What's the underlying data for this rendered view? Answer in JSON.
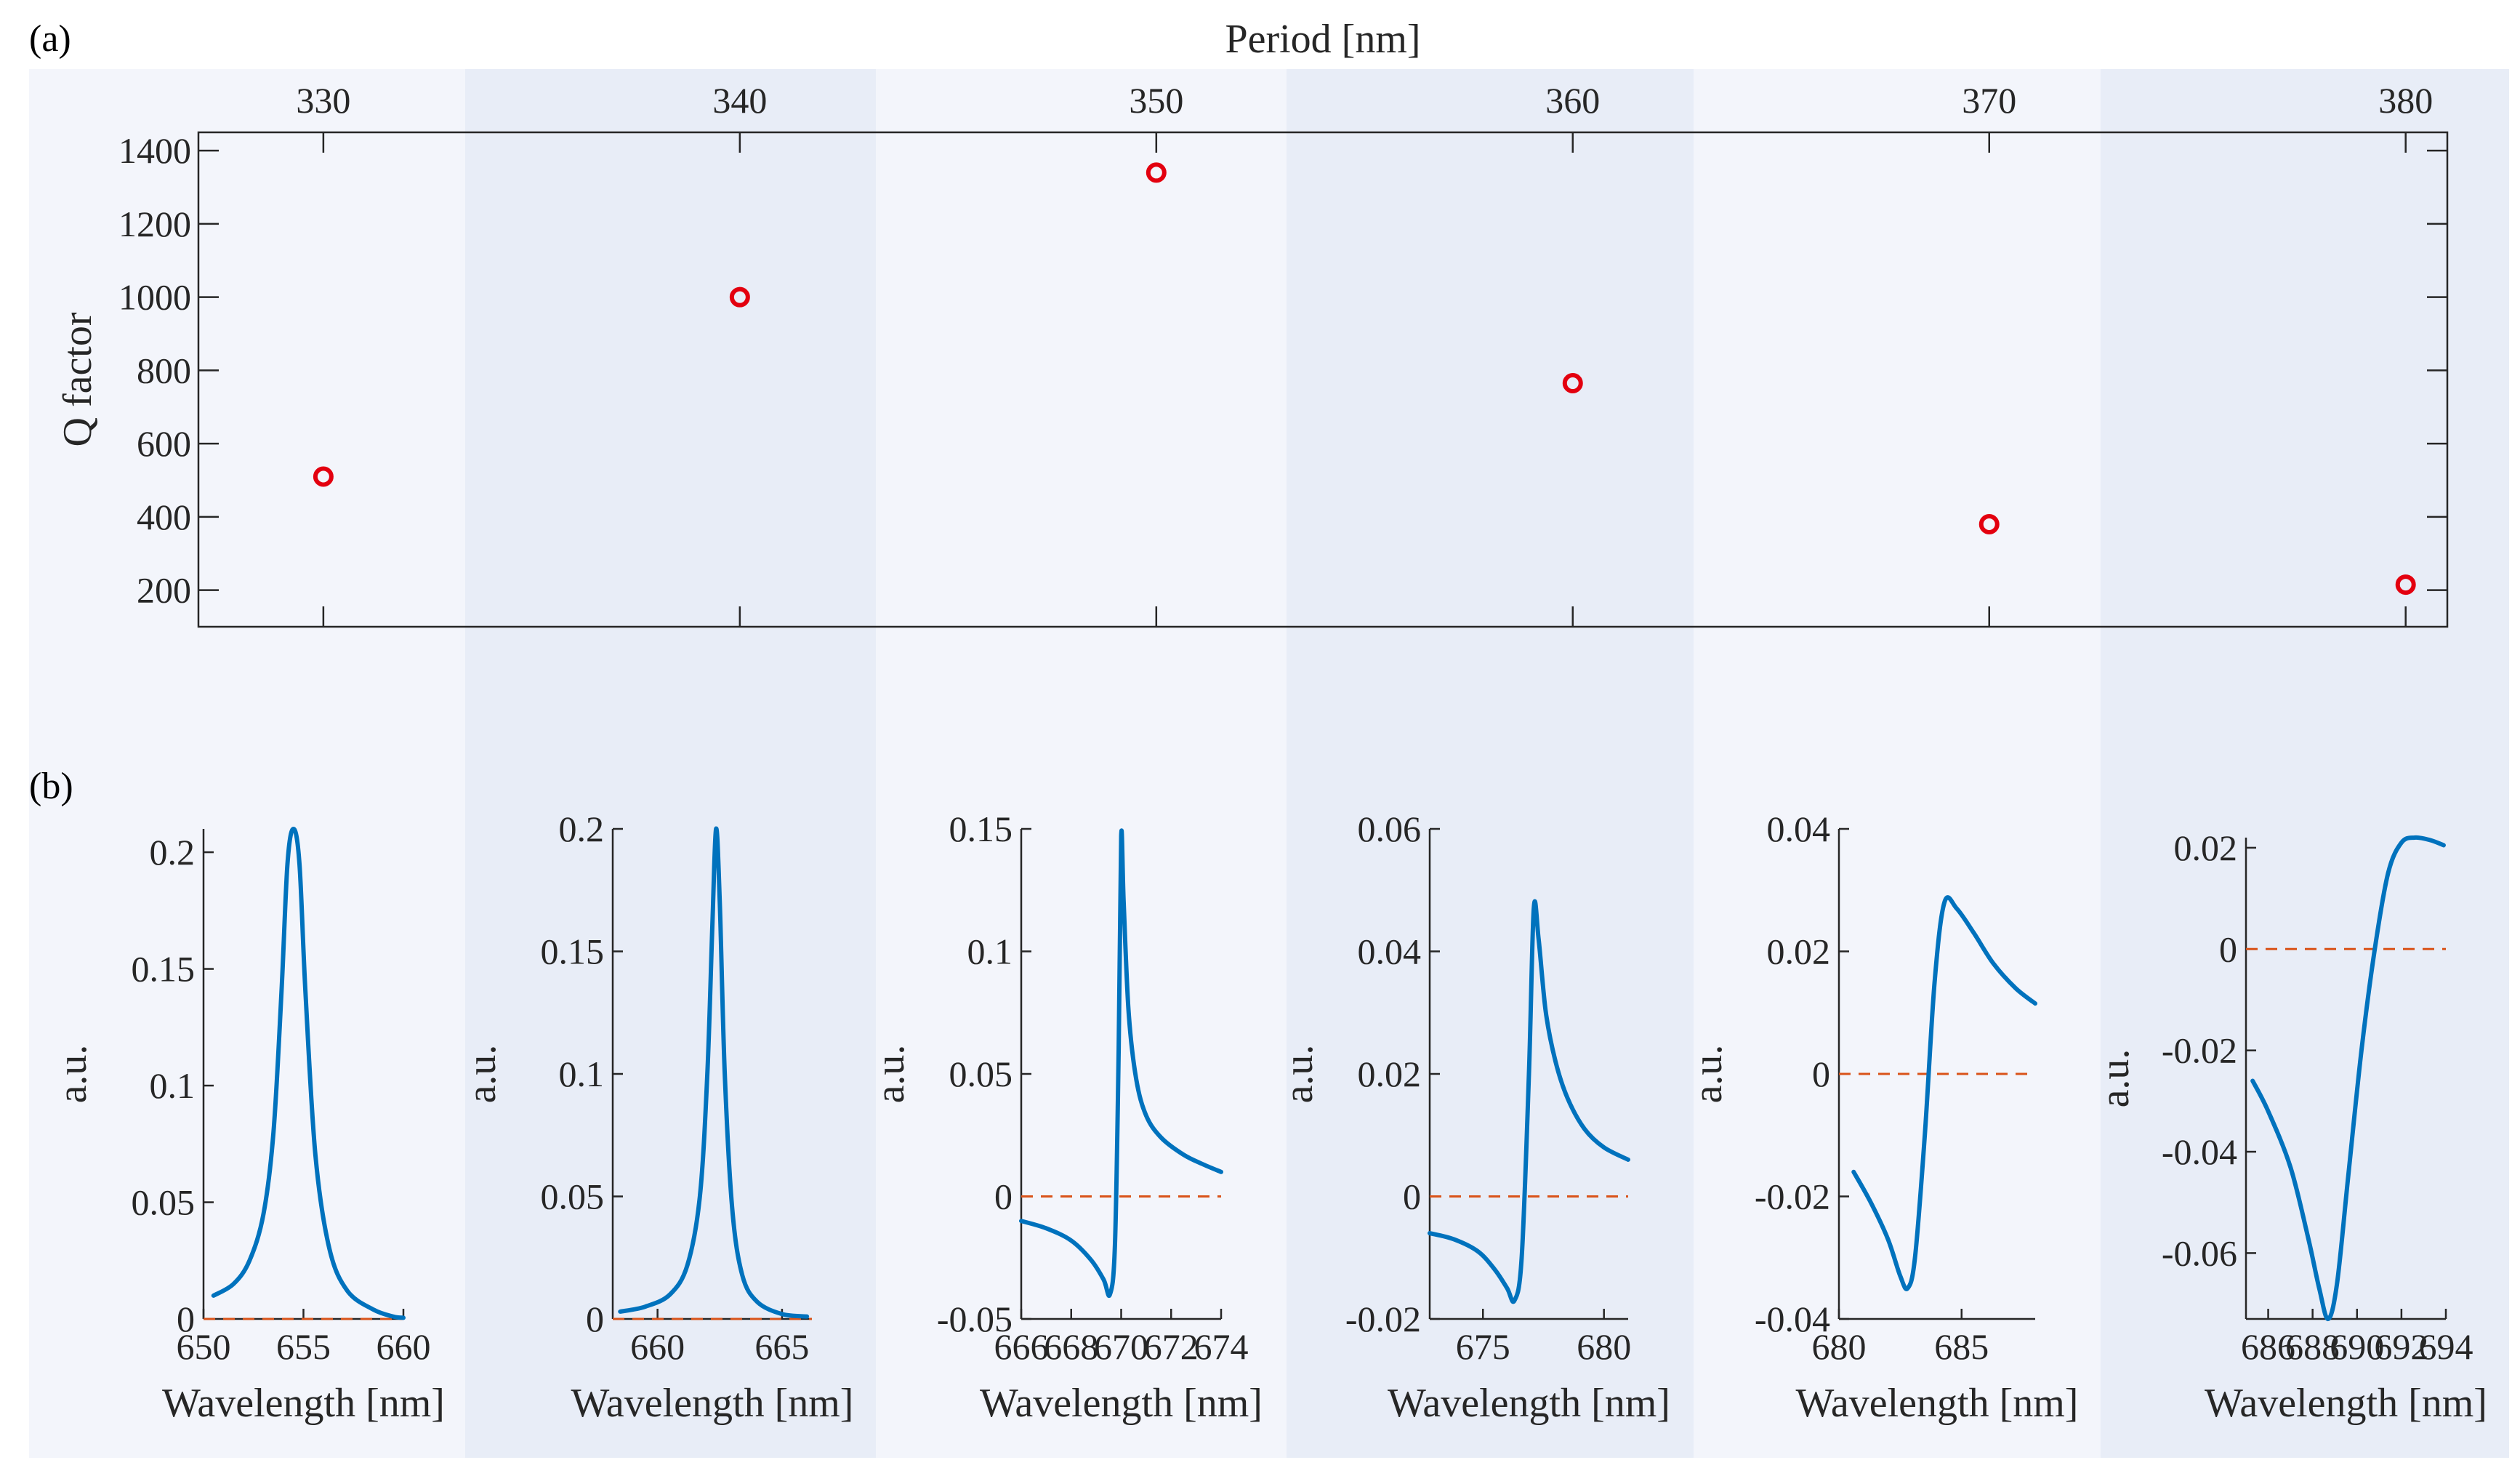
{
  "panel_labels": {
    "a": "(a)",
    "b": "(b)"
  },
  "colors": {
    "band_light": "#f3f5fb",
    "band_dark": "#e8edf7",
    "marker": "#e3000f",
    "curve": "#0072bd",
    "zero_line": "#d95319",
    "axis": "#262626"
  },
  "chart_data": [
    {
      "id": "a",
      "type": "scatter",
      "title": "",
      "xlabel": "Period [nm]",
      "ylabel": "Q factor",
      "x": [
        330,
        340,
        350,
        360,
        370,
        380
      ],
      "y": [
        510,
        1000,
        1340,
        765,
        380,
        215
      ],
      "xlim": [
        327,
        381
      ],
      "ylim": [
        100,
        1450
      ],
      "xticks": [
        330,
        340,
        350,
        360,
        370,
        380
      ],
      "yticks": [
        200,
        400,
        600,
        800,
        1000,
        1200,
        1400
      ],
      "ytick_labels": [
        "200",
        "400",
        "600",
        "800",
        "1000",
        "1200",
        "1400"
      ],
      "marker": "open-circle",
      "xaxis_location": "top"
    },
    {
      "id": "b",
      "type": "line",
      "xlabel": "Wavelength  [nm]",
      "ylabel": "a.u.",
      "subplots": [
        {
          "period": 330,
          "xlim": [
            650,
            660
          ],
          "ylim": [
            0,
            0.21
          ],
          "xticks": [
            650,
            655,
            660
          ],
          "xtick_labels": [
            "650",
            "655",
            "660"
          ],
          "yticks": [
            0,
            0.05,
            0.1,
            0.15,
            0.2
          ],
          "ytick_labels": [
            "0",
            "0.05",
            "0.1",
            "0.15",
            "0.2"
          ],
          "x": [
            650.5,
            651.5,
            652.3,
            653.0,
            653.5,
            653.9,
            654.2,
            654.5,
            654.8,
            655.1,
            655.6,
            656.3,
            657.2,
            658.5,
            659.5,
            660.0
          ],
          "y": [
            0.01,
            0.015,
            0.025,
            0.045,
            0.08,
            0.14,
            0.195,
            0.21,
            0.195,
            0.14,
            0.07,
            0.03,
            0.012,
            0.004,
            0.001,
            0.0005
          ]
        },
        {
          "period": 340,
          "xlim": [
            658.2,
            666.2
          ],
          "ylim": [
            0,
            0.2
          ],
          "xticks": [
            660,
            665
          ],
          "xtick_labels": [
            "660",
            "665"
          ],
          "yticks": [
            0,
            0.05,
            0.1,
            0.15,
            0.2
          ],
          "ytick_labels": [
            "0",
            "0.05",
            "0.1",
            "0.15",
            "0.2"
          ],
          "x": [
            658.5,
            659.5,
            660.5,
            661.2,
            661.7,
            662.0,
            662.2,
            662.35,
            662.5,
            662.7,
            663.0,
            663.4,
            664.0,
            665.0,
            666.0
          ],
          "y": [
            0.003,
            0.005,
            0.01,
            0.022,
            0.05,
            0.1,
            0.16,
            0.2,
            0.17,
            0.1,
            0.045,
            0.018,
            0.007,
            0.002,
            0.001
          ]
        },
        {
          "period": 350,
          "xlim": [
            666,
            674
          ],
          "ylim": [
            -0.05,
            0.15
          ],
          "xticks": [
            666,
            668,
            670,
            672,
            674
          ],
          "xtick_labels": [
            "666",
            "668",
            "670",
            "672",
            "674"
          ],
          "yticks": [
            -0.05,
            0,
            0.05,
            0.1,
            0.15
          ],
          "ytick_labels": [
            "-0.05",
            "0",
            "0.05",
            "0.1",
            "0.15"
          ],
          "x": [
            666.0,
            667.0,
            668.0,
            668.8,
            669.3,
            669.55,
            669.75,
            669.9,
            670.0,
            670.1,
            670.3,
            670.6,
            671.0,
            671.6,
            672.5,
            673.3,
            674.0
          ],
          "y": [
            -0.01,
            -0.013,
            -0.018,
            -0.026,
            -0.034,
            -0.04,
            -0.02,
            0.06,
            0.147,
            0.12,
            0.075,
            0.048,
            0.033,
            0.024,
            0.017,
            0.013,
            0.01
          ]
        },
        {
          "period": 360,
          "xlim": [
            672.8,
            681
          ],
          "ylim": [
            -0.02,
            0.06
          ],
          "xticks": [
            675,
            680
          ],
          "xtick_labels": [
            "675",
            "680"
          ],
          "yticks": [
            -0.02,
            0,
            0.02,
            0.04,
            0.06
          ],
          "ytick_labels": [
            "-0.02",
            "0",
            "0.02",
            "0.04",
            "0.06"
          ],
          "x": [
            672.8,
            673.8,
            674.8,
            675.5,
            676.0,
            676.3,
            676.6,
            676.9,
            677.1,
            677.3,
            677.6,
            678.0,
            678.5,
            679.2,
            680.0,
            681.0
          ],
          "y": [
            -0.006,
            -0.007,
            -0.009,
            -0.012,
            -0.015,
            -0.017,
            -0.01,
            0.02,
            0.047,
            0.042,
            0.03,
            0.022,
            0.016,
            0.011,
            0.008,
            0.006
          ]
        },
        {
          "period": 370,
          "xlim": [
            680,
            688
          ],
          "ylim": [
            -0.04,
            0.04
          ],
          "xticks": [
            680,
            685
          ],
          "xtick_labels": [
            "680",
            "685"
          ],
          "yticks": [
            -0.04,
            -0.02,
            0,
            0.02,
            0.04
          ],
          "ytick_labels": [
            "-0.04",
            "-0.02",
            "0",
            "0.02",
            "0.04"
          ],
          "x": [
            680.6,
            681.3,
            682.0,
            682.5,
            682.8,
            683.1,
            683.5,
            683.9,
            684.3,
            684.8,
            685.5,
            686.3,
            687.2,
            688.0
          ],
          "y": [
            -0.016,
            -0.021,
            -0.027,
            -0.033,
            -0.035,
            -0.03,
            -0.01,
            0.015,
            0.028,
            0.027,
            0.023,
            0.018,
            0.014,
            0.0115
          ]
        },
        {
          "period": 380,
          "xlim": [
            685,
            694
          ],
          "ylim": [
            -0.073,
            0.022
          ],
          "xticks": [
            686,
            688,
            690,
            692,
            694
          ],
          "xtick_labels": [
            "686",
            "688",
            "690",
            "692",
            "694"
          ],
          "yticks": [
            -0.06,
            -0.04,
            -0.02,
            0,
            0.02
          ],
          "ytick_labels": [
            "-0.06",
            "-0.04",
            "-0.02",
            "0",
            "0.02"
          ],
          "x": [
            685.3,
            686.0,
            687.0,
            687.8,
            688.3,
            688.7,
            689.1,
            689.6,
            690.2,
            690.8,
            691.4,
            692.0,
            692.6,
            693.3,
            693.9
          ],
          "y": [
            -0.026,
            -0.032,
            -0.043,
            -0.057,
            -0.067,
            -0.073,
            -0.066,
            -0.045,
            -0.02,
            0.0,
            0.015,
            0.021,
            0.022,
            0.0215,
            0.0205
          ]
        }
      ]
    }
  ]
}
